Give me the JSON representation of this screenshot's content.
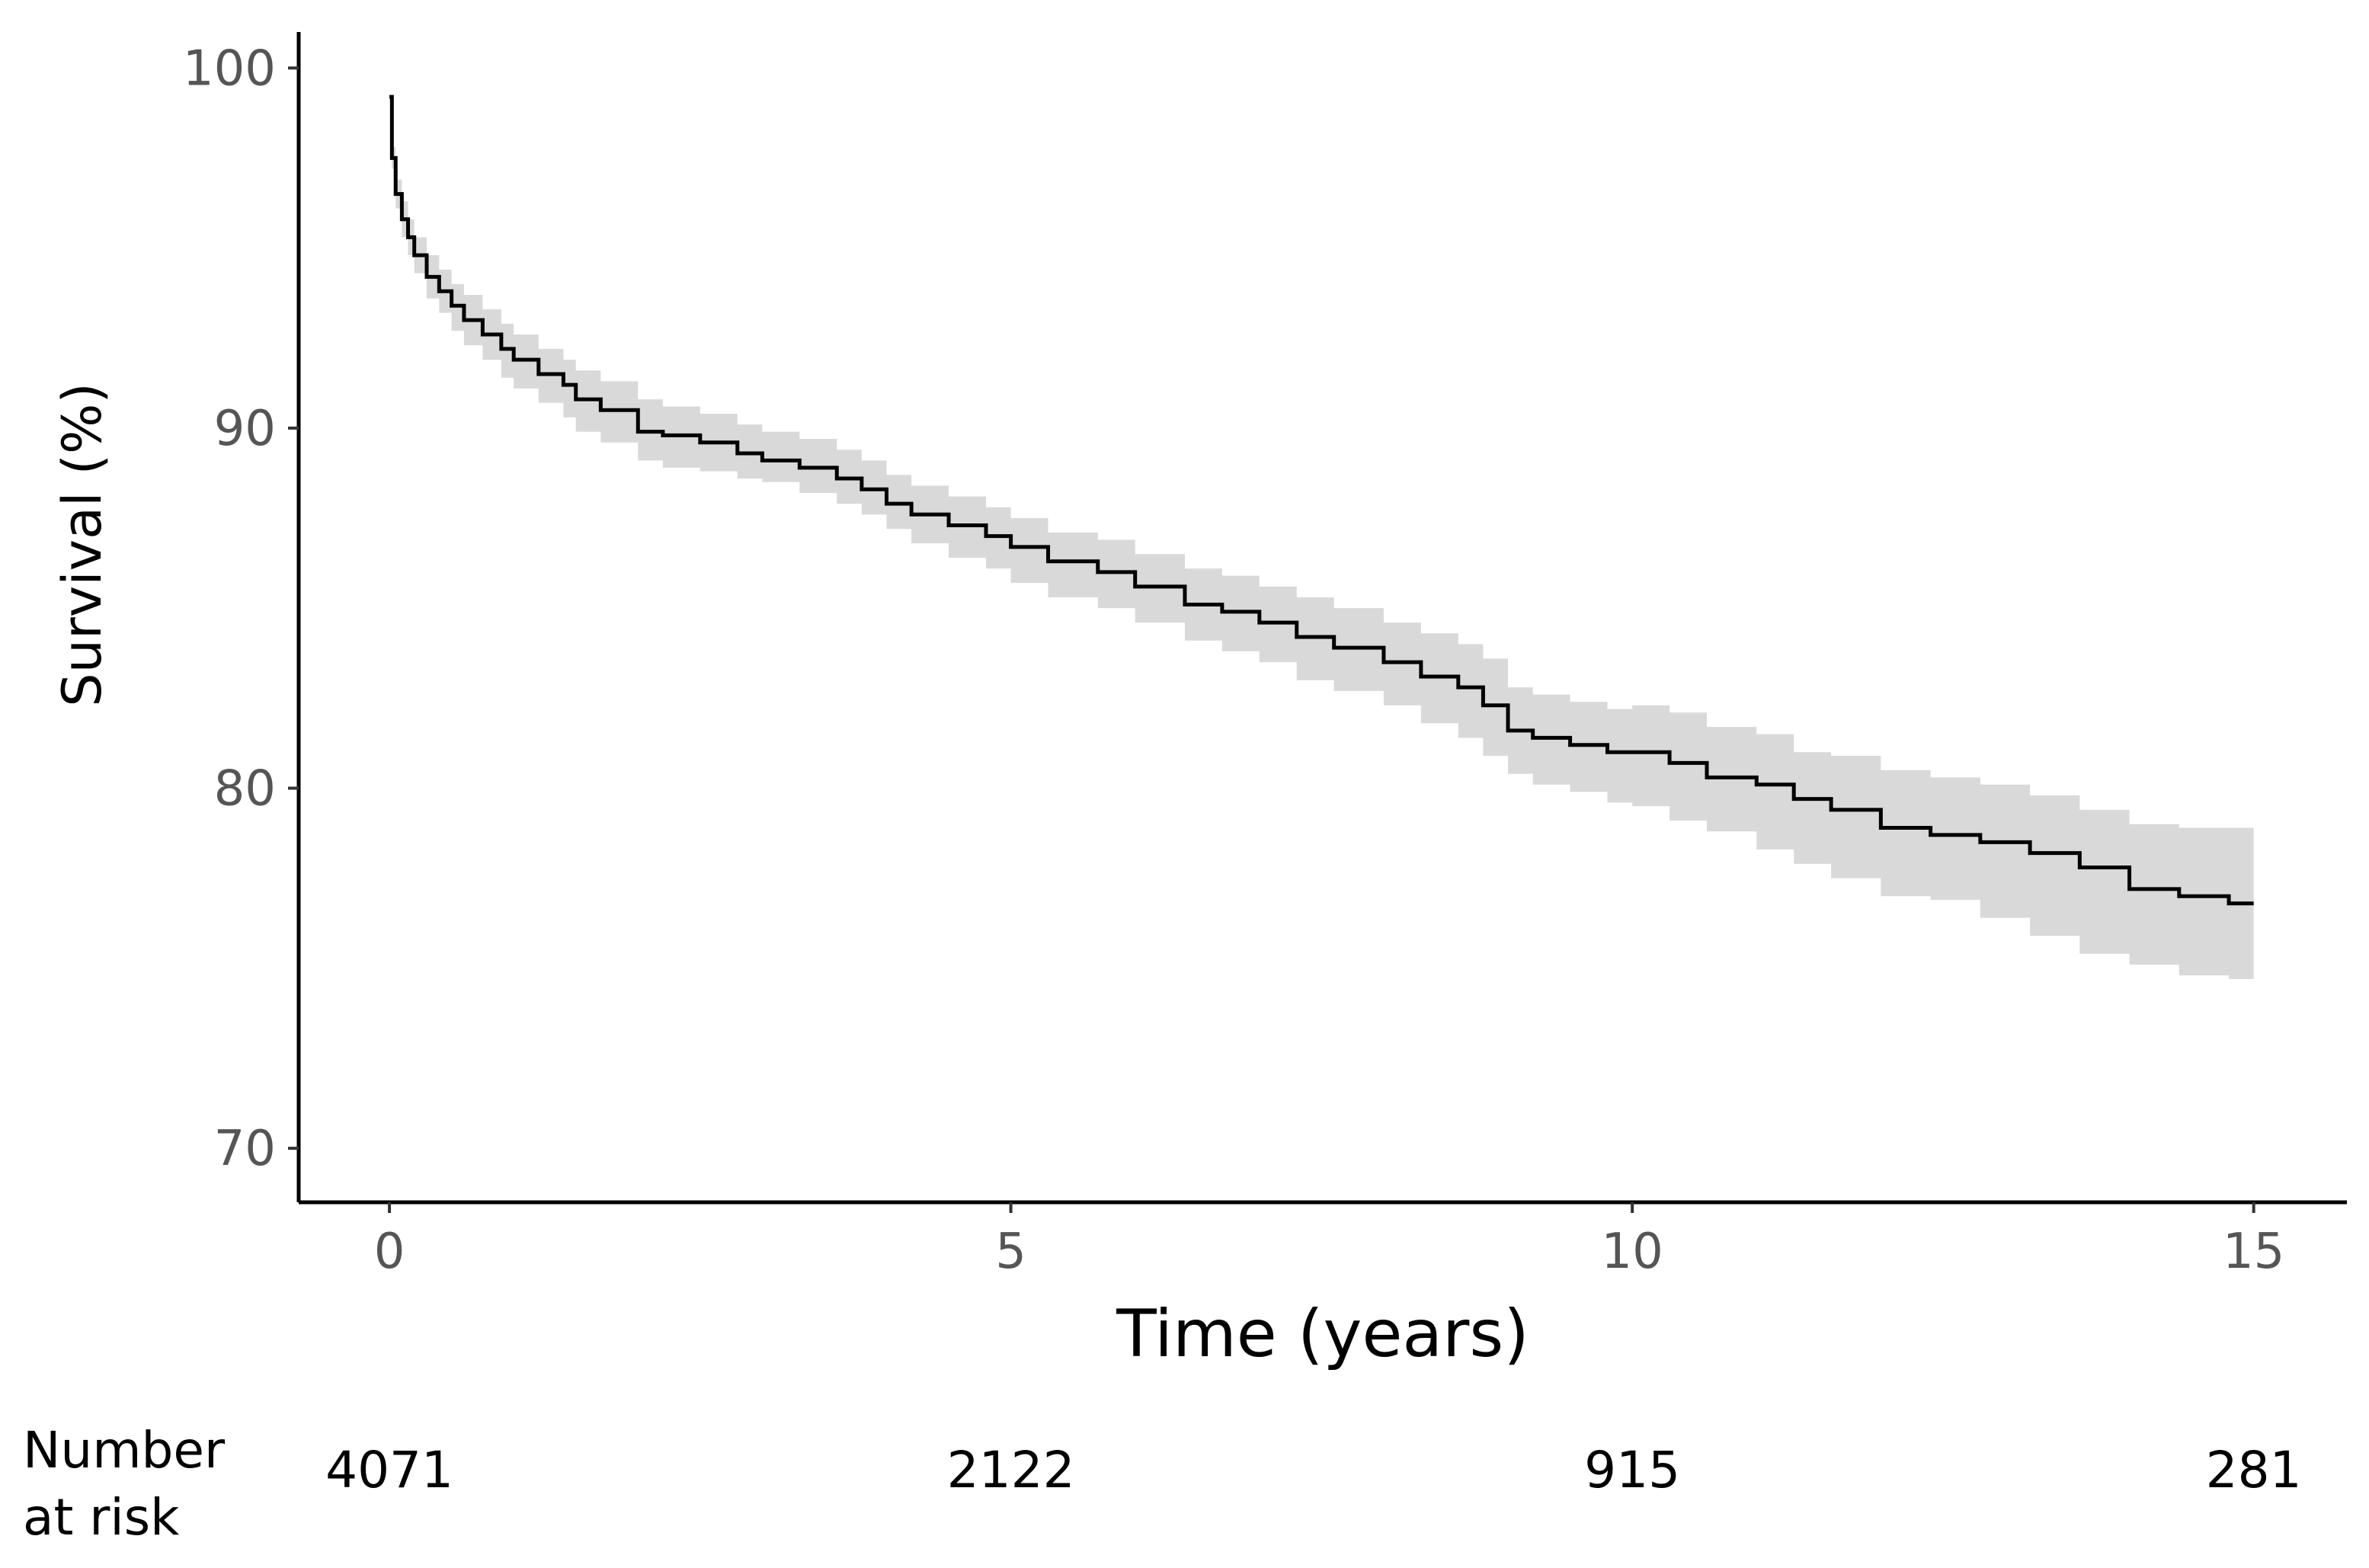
{
  "chart_data": {
    "type": "line",
    "title": "",
    "xlabel": "Time (years)",
    "ylabel": "Survival (%)",
    "xlim": [
      -0.73,
      15.75
    ],
    "ylim": [
      68.5,
      101
    ],
    "x_ticks": [
      0,
      5,
      10,
      15
    ],
    "x_tick_labels": [
      "0",
      "5",
      "10",
      "15"
    ],
    "y_ticks": [
      70,
      80,
      90,
      100
    ],
    "y_tick_labels": [
      "70",
      "80",
      "90",
      "100"
    ],
    "grid": false,
    "legend": "none",
    "colors": {
      "line": "#000000",
      "ci_band": "#d9d9d9",
      "tick_text": "#555555"
    },
    "series": [
      {
        "style": "step",
        "x": [
          0,
          0.02,
          0.05,
          0.1,
          0.15,
          0.2,
          0.3,
          0.4,
          0.5,
          0.6,
          0.75,
          0.9,
          1.0,
          1.2,
          1.4,
          1.5,
          1.7,
          2.0,
          2.2,
          2.5,
          2.8,
          3.0,
          3.3,
          3.6,
          3.8,
          4.0,
          4.2,
          4.5,
          4.8,
          5.0,
          5.3,
          5.7,
          6.0,
          6.4,
          6.7,
          7.0,
          7.3,
          7.6,
          8.0,
          8.3,
          8.6,
          8.8,
          9.0,
          9.2,
          9.5,
          9.8,
          10.0,
          10.3,
          10.6,
          11.0,
          11.3,
          11.6,
          12.0,
          12.4,
          12.8,
          13.2,
          13.6,
          14.0,
          14.4,
          14.8,
          15.0
        ],
        "y": [
          99.2,
          97.5,
          96.5,
          95.8,
          95.3,
          94.8,
          94.2,
          93.8,
          93.4,
          93.0,
          92.6,
          92.2,
          91.9,
          91.5,
          91.2,
          90.8,
          90.5,
          89.9,
          89.8,
          89.6,
          89.3,
          89.1,
          88.9,
          88.6,
          88.3,
          87.9,
          87.6,
          87.3,
          87.0,
          86.7,
          86.3,
          86.0,
          85.6,
          85.1,
          84.9,
          84.6,
          84.2,
          83.9,
          83.5,
          83.1,
          82.8,
          82.3,
          81.6,
          81.4,
          81.2,
          81.0,
          81.0,
          80.7,
          80.3,
          80.1,
          79.7,
          79.4,
          78.9,
          78.7,
          78.5,
          78.2,
          77.8,
          77.2,
          77.0,
          76.8,
          76.8
        ],
        "ci_lower": [
          99.2,
          97.2,
          96.1,
          95.3,
          94.8,
          94.3,
          93.6,
          93.2,
          92.7,
          92.3,
          91.9,
          91.4,
          91.1,
          90.7,
          90.3,
          89.9,
          89.6,
          89.1,
          88.9,
          88.8,
          88.6,
          88.5,
          88.2,
          87.9,
          87.6,
          87.2,
          86.8,
          86.4,
          86.1,
          85.7,
          85.3,
          85.0,
          84.6,
          84.1,
          83.8,
          83.5,
          83.0,
          82.7,
          82.3,
          81.8,
          81.4,
          80.9,
          80.4,
          80.1,
          79.9,
          79.6,
          79.5,
          79.1,
          78.8,
          78.3,
          77.9,
          77.5,
          77.0,
          76.9,
          76.4,
          75.9,
          75.4,
          75.1,
          74.8,
          74.7,
          74.7
        ],
        "ci_upper": [
          99.2,
          97.8,
          96.9,
          96.3,
          95.8,
          95.3,
          94.8,
          94.4,
          94.0,
          93.7,
          93.3,
          92.9,
          92.6,
          92.2,
          91.9,
          91.6,
          91.3,
          90.8,
          90.6,
          90.4,
          90.1,
          89.9,
          89.7,
          89.4,
          89.1,
          88.7,
          88.4,
          88.1,
          87.8,
          87.5,
          87.1,
          86.9,
          86.5,
          86.1,
          85.9,
          85.6,
          85.3,
          85.0,
          84.6,
          84.3,
          84.0,
          83.6,
          82.8,
          82.6,
          82.4,
          82.2,
          82.3,
          82.1,
          81.7,
          81.5,
          81.0,
          80.9,
          80.5,
          80.3,
          80.1,
          79.8,
          79.4,
          79.0,
          78.9,
          78.9,
          78.9
        ]
      }
    ],
    "risk_table": {
      "label_line1": "Number",
      "label_line2": "at risk",
      "times": [
        0,
        5,
        10,
        15
      ],
      "values": [
        "4071",
        "2122",
        "915",
        "281"
      ]
    }
  }
}
